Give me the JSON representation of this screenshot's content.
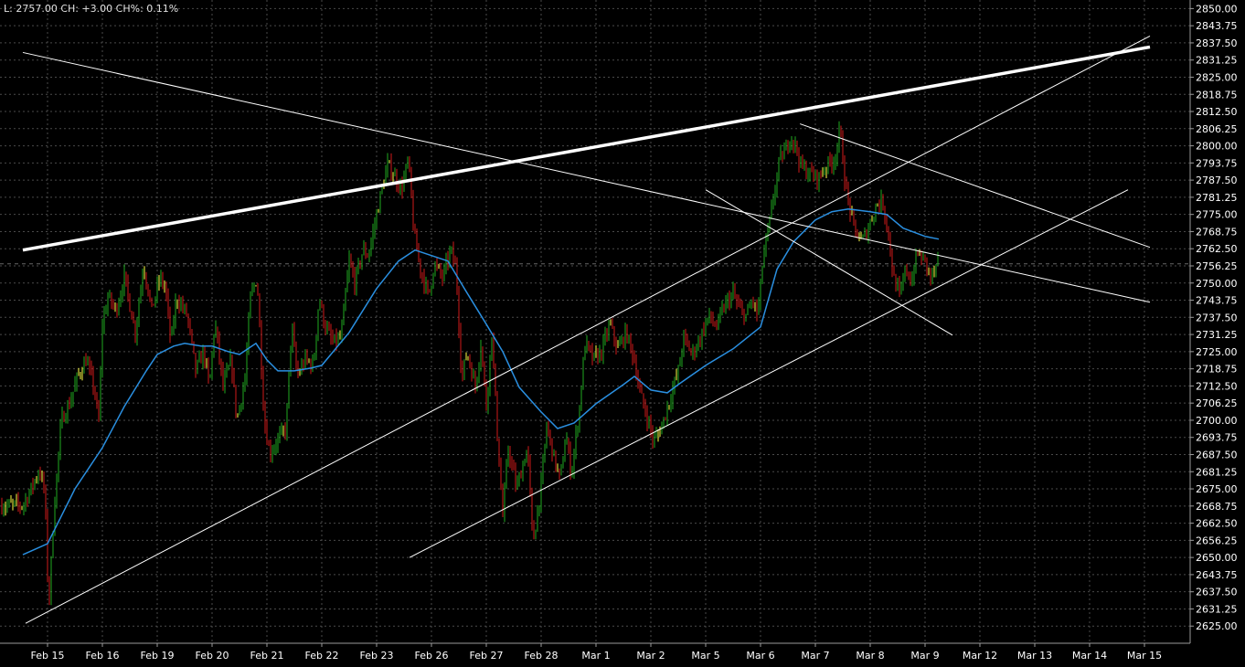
{
  "header": {
    "info": "L: 2757.00 CH: +3.00 CH%: 0.11%"
  },
  "colors": {
    "background": "#000000",
    "grid": "#4a4a4a",
    "axis": "#9a9a9a",
    "up": "#1faa1f",
    "down": "#d01a1a",
    "doji": "#ffff44",
    "ma": "#2a8fe0",
    "trendline": "#ffffff",
    "last_price": "#666666"
  },
  "chart_data": {
    "type": "candlestick",
    "title": "",
    "xlabel": "",
    "ylabel": "",
    "ylim": [
      2618.75,
      2853.125
    ],
    "y_ticks": [
      "2850.00",
      "2843.75",
      "2837.50",
      "2831.25",
      "2825.00",
      "2818.75",
      "2812.50",
      "2806.25",
      "2800.00",
      "2793.75",
      "2787.50",
      "2781.25",
      "2775.00",
      "2768.75",
      "2762.50",
      "2756.25",
      "2750.00",
      "2743.75",
      "2737.50",
      "2731.25",
      "2725.00",
      "2718.75",
      "2712.50",
      "2706.25",
      "2700.00",
      "2693.75",
      "2687.50",
      "2681.25",
      "2675.00",
      "2668.75",
      "2662.50",
      "2656.25",
      "2650.00",
      "2643.75",
      "2637.50",
      "2631.25",
      "2625.00"
    ],
    "x_ticks": [
      "Feb 15",
      "Feb 16",
      "Feb 19",
      "Feb 20",
      "Feb 21",
      "Feb 22",
      "Feb 23",
      "Feb 26",
      "Feb 27",
      "Feb 28",
      "Mar 1",
      "Mar 2",
      "Mar 5",
      "Mar 6",
      "Mar 7",
      "Mar 8",
      "Mar 9",
      "Mar 12",
      "Mar 13",
      "Mar 14",
      "Mar 15"
    ],
    "x_range": [
      -0.45,
      20.1
    ],
    "grid": true,
    "last_price": 2757.0,
    "price_path": [
      [
        -0.45,
        2669
      ],
      [
        -0.3,
        2675
      ],
      [
        -0.15,
        2682
      ],
      [
        -0.05,
        2674
      ],
      [
        0.02,
        2631
      ],
      [
        0.12,
        2668
      ],
      [
        0.25,
        2700
      ],
      [
        0.4,
        2706
      ],
      [
        0.55,
        2716
      ],
      [
        0.7,
        2722
      ],
      [
        0.85,
        2712
      ],
      [
        0.93,
        2698
      ],
      [
        1.0,
        2735
      ],
      [
        1.1,
        2745
      ],
      [
        1.25,
        2740
      ],
      [
        1.4,
        2752
      ],
      [
        1.6,
        2732
      ],
      [
        1.75,
        2757
      ],
      [
        1.9,
        2740
      ],
      [
        2.05,
        2752
      ],
      [
        2.15,
        2748
      ],
      [
        2.25,
        2728
      ],
      [
        2.35,
        2745
      ],
      [
        2.55,
        2738
      ],
      [
        2.7,
        2718
      ],
      [
        2.85,
        2725
      ],
      [
        2.95,
        2712
      ],
      [
        3.05,
        2736
      ],
      [
        3.2,
        2712
      ],
      [
        3.35,
        2722
      ],
      [
        3.45,
        2700
      ],
      [
        3.6,
        2715
      ],
      [
        3.7,
        2745
      ],
      [
        3.82,
        2752
      ],
      [
        3.95,
        2700
      ],
      [
        4.05,
        2688
      ],
      [
        4.2,
        2693
      ],
      [
        4.35,
        2697
      ],
      [
        4.45,
        2735
      ],
      [
        4.55,
        2716
      ],
      [
        4.7,
        2722
      ],
      [
        4.85,
        2720
      ],
      [
        4.95,
        2745
      ],
      [
        5.05,
        2735
      ],
      [
        5.2,
        2728
      ],
      [
        5.35,
        2730
      ],
      [
        5.5,
        2758
      ],
      [
        5.6,
        2750
      ],
      [
        5.75,
        2762
      ],
      [
        5.85,
        2760
      ],
      [
        5.95,
        2770
      ],
      [
        6.05,
        2780
      ],
      [
        6.2,
        2793
      ],
      [
        6.3,
        2790
      ],
      [
        6.45,
        2784
      ],
      [
        6.58,
        2795
      ],
      [
        6.68,
        2768
      ],
      [
        6.8,
        2755
      ],
      [
        6.95,
        2745
      ],
      [
        7.05,
        2757
      ],
      [
        7.2,
        2752
      ],
      [
        7.35,
        2762
      ],
      [
        7.45,
        2755
      ],
      [
        7.55,
        2715
      ],
      [
        7.65,
        2725
      ],
      [
        7.8,
        2712
      ],
      [
        7.9,
        2728
      ],
      [
        8.0,
        2705
      ],
      [
        8.1,
        2732
      ],
      [
        8.2,
        2695
      ],
      [
        8.3,
        2665
      ],
      [
        8.4,
        2690
      ],
      [
        8.55,
        2675
      ],
      [
        8.75,
        2690
      ],
      [
        8.85,
        2655
      ],
      [
        9.0,
        2676
      ],
      [
        9.1,
        2698
      ],
      [
        9.25,
        2685
      ],
      [
        9.35,
        2678
      ],
      [
        9.45,
        2695
      ],
      [
        9.55,
        2680
      ],
      [
        9.7,
        2705
      ],
      [
        9.8,
        2728
      ],
      [
        9.95,
        2722
      ],
      [
        10.1,
        2725
      ],
      [
        10.25,
        2735
      ],
      [
        10.4,
        2726
      ],
      [
        10.55,
        2732
      ],
      [
        10.7,
        2722
      ],
      [
        10.8,
        2710
      ],
      [
        10.95,
        2700
      ],
      [
        11.05,
        2692
      ],
      [
        11.2,
        2698
      ],
      [
        11.35,
        2708
      ],
      [
        11.5,
        2718
      ],
      [
        11.6,
        2730
      ],
      [
        11.75,
        2724
      ],
      [
        11.9,
        2730
      ],
      [
        12.05,
        2738
      ],
      [
        12.2,
        2734
      ],
      [
        12.35,
        2742
      ],
      [
        12.5,
        2746
      ],
      [
        12.62,
        2740
      ],
      [
        12.75,
        2738
      ],
      [
        12.85,
        2744
      ],
      [
        12.95,
        2738
      ],
      [
        13.05,
        2760
      ],
      [
        13.15,
        2770
      ],
      [
        13.25,
        2783
      ],
      [
        13.35,
        2795
      ],
      [
        13.45,
        2798
      ],
      [
        13.55,
        2804
      ],
      [
        13.65,
        2799
      ],
      [
        13.75,
        2792
      ],
      [
        13.9,
        2790
      ],
      [
        14.05,
        2788
      ],
      [
        14.2,
        2793
      ],
      [
        14.35,
        2795
      ],
      [
        14.45,
        2806
      ],
      [
        14.55,
        2785
      ],
      [
        14.7,
        2770
      ],
      [
        14.85,
        2765
      ],
      [
        15.0,
        2772
      ],
      [
        15.1,
        2778
      ],
      [
        15.22,
        2780
      ],
      [
        15.32,
        2770
      ],
      [
        15.42,
        2752
      ],
      [
        15.55,
        2745
      ],
      [
        15.65,
        2756
      ],
      [
        15.75,
        2750
      ],
      [
        15.85,
        2761
      ],
      [
        16.0,
        2758
      ],
      [
        16.1,
        2752
      ],
      [
        16.25,
        2757
      ]
    ],
    "moving_average": [
      [
        -0.45,
        2651
      ],
      [
        0.0,
        2655
      ],
      [
        0.2,
        2663
      ],
      [
        0.5,
        2675
      ],
      [
        1.0,
        2690
      ],
      [
        1.4,
        2705
      ],
      [
        1.8,
        2718
      ],
      [
        2.0,
        2724
      ],
      [
        2.3,
        2727
      ],
      [
        2.5,
        2728
      ],
      [
        2.8,
        2727
      ],
      [
        3.0,
        2727
      ],
      [
        3.3,
        2725
      ],
      [
        3.5,
        2724
      ],
      [
        3.8,
        2728
      ],
      [
        4.0,
        2722
      ],
      [
        4.2,
        2718
      ],
      [
        4.5,
        2718
      ],
      [
        4.8,
        2719
      ],
      [
        5.0,
        2720
      ],
      [
        5.5,
        2732
      ],
      [
        6.0,
        2748
      ],
      [
        6.4,
        2758
      ],
      [
        6.7,
        2762
      ],
      [
        7.0,
        2760
      ],
      [
        7.3,
        2758
      ],
      [
        7.6,
        2748
      ],
      [
        8.0,
        2735
      ],
      [
        8.3,
        2725
      ],
      [
        8.6,
        2712
      ],
      [
        9.0,
        2703
      ],
      [
        9.3,
        2697
      ],
      [
        9.6,
        2699
      ],
      [
        10.0,
        2706
      ],
      [
        10.5,
        2713
      ],
      [
        10.7,
        2716
      ],
      [
        11.0,
        2711
      ],
      [
        11.3,
        2710
      ],
      [
        11.5,
        2713
      ],
      [
        12.0,
        2720
      ],
      [
        12.5,
        2726
      ],
      [
        13.0,
        2734
      ],
      [
        13.3,
        2755
      ],
      [
        13.6,
        2765
      ],
      [
        14.0,
        2773
      ],
      [
        14.3,
        2776
      ],
      [
        14.6,
        2777
      ],
      [
        15.0,
        2776
      ],
      [
        15.3,
        2775
      ],
      [
        15.6,
        2770
      ],
      [
        16.0,
        2767
      ],
      [
        16.25,
        2766
      ]
    ],
    "trendlines": [
      {
        "from": [
          -0.45,
          2762
        ],
        "to": [
          20.1,
          2836
        ],
        "width": 3.5
      },
      {
        "from": [
          -0.45,
          2834
        ],
        "to": [
          20.1,
          2743
        ],
        "width": 1
      },
      {
        "from": [
          -0.4,
          2626
        ],
        "to": [
          20.1,
          2840
        ],
        "width": 1
      },
      {
        "from": [
          6.6,
          2650
        ],
        "to": [
          19.7,
          2784
        ],
        "width": 1
      },
      {
        "from": [
          12.0,
          2784
        ],
        "to": [
          16.5,
          2731
        ],
        "width": 1
      },
      {
        "from": [
          13.72,
          2808
        ],
        "to": [
          20.1,
          2763
        ],
        "width": 1
      }
    ]
  }
}
